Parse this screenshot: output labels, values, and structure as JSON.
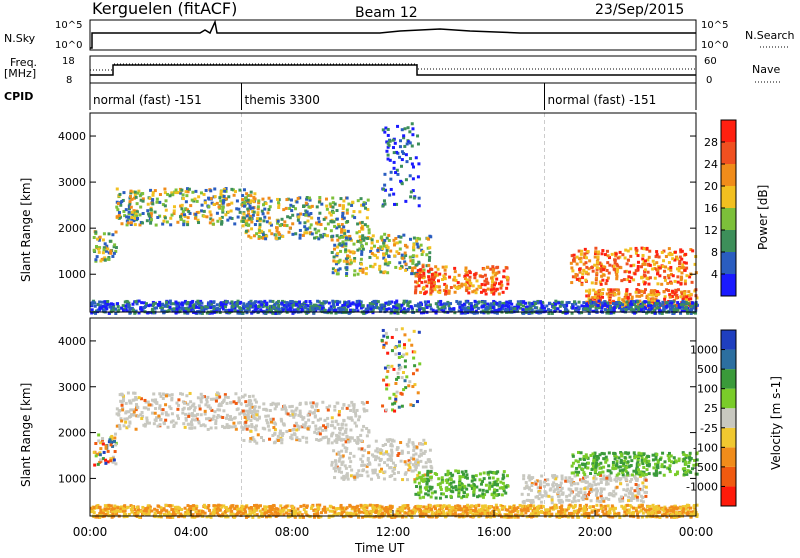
{
  "header": {
    "station": "Kerguelen (fitACF)",
    "beam": "Beam 12",
    "date": "23/Sep/2015"
  },
  "info_panels": {
    "nsky_label": "N.Sky",
    "nsky_ticks": [
      "10^5",
      "10^0"
    ],
    "nsearch_label": "N.Search",
    "freq_label_line1": "Freq.",
    "freq_label_line2": "[MHz]",
    "freq_ticks": [
      "18",
      "8"
    ],
    "nave_label": "Nave",
    "nave_ticks": [
      "60",
      "0"
    ],
    "cpid_label": "CPID",
    "cpid_segments": [
      {
        "label": "normal (fast) -151",
        "start": 0,
        "end": 6
      },
      {
        "label": "themis 3300",
        "start": 6,
        "end": 18
      },
      {
        "label": "normal (fast) -151",
        "start": 18,
        "end": 24
      }
    ]
  },
  "chart_data": [
    {
      "type": "heatmap",
      "title": "",
      "xlabel": "Time UT",
      "ylabel": "Slant Range [km]",
      "x_range_hours": [
        0,
        24
      ],
      "ylim": [
        180,
        4500
      ],
      "x_tick_labels": [
        "00:00",
        "04:00",
        "08:00",
        "12:00",
        "16:00",
        "20:00",
        "00:00"
      ],
      "y_tick_labels": [
        "1000",
        "2000",
        "3000",
        "4000"
      ],
      "y_ticks": [
        1000,
        2000,
        3000,
        4000
      ],
      "colorbar": {
        "label": "Power [dB]",
        "tick_labels": [
          "4",
          "8",
          "12",
          "16",
          "20",
          "24",
          "28"
        ],
        "colors": [
          "#1a1aff",
          "#2a5dc0",
          "#3d8f5a",
          "#7cc03a",
          "#f2c020",
          "#f08c1a",
          "#f05020",
          "#ff2010"
        ]
      },
      "regions": [
        {
          "t0": 0.1,
          "t1": 1.0,
          "r0": 1300,
          "r1": 2000,
          "level": "medium"
        },
        {
          "t0": 1.0,
          "t1": 6.5,
          "r0": 2100,
          "r1": 2900,
          "level": "medium"
        },
        {
          "t0": 6.0,
          "t1": 11.0,
          "r0": 1800,
          "r1": 2700,
          "level": "medium"
        },
        {
          "t0": 9.5,
          "t1": 13.5,
          "r0": 1000,
          "r1": 1900,
          "level": "medium"
        },
        {
          "t0": 11.5,
          "t1": 13.0,
          "r0": 2500,
          "r1": 4300,
          "level": "weak"
        },
        {
          "t0": 12.8,
          "t1": 16.5,
          "r0": 600,
          "r1": 1200,
          "level": "strong"
        },
        {
          "t0": 19.0,
          "t1": 24.0,
          "r0": 800,
          "r1": 1600,
          "level": "strong"
        },
        {
          "t0": 19.5,
          "t1": 24.0,
          "r0": 300,
          "r1": 700,
          "level": "strong"
        },
        {
          "t0": 0.0,
          "t1": 24.0,
          "r0": 180,
          "r1": 450,
          "level": "weak"
        }
      ]
    },
    {
      "type": "heatmap",
      "title": "",
      "xlabel": "Time UT",
      "ylabel": "Slant Range [km]",
      "x_range_hours": [
        0,
        24
      ],
      "ylim": [
        180,
        4500
      ],
      "x_tick_labels": [
        "00:00",
        "04:00",
        "08:00",
        "12:00",
        "16:00",
        "20:00",
        "00:00"
      ],
      "y_tick_labels": [
        "1000",
        "2000",
        "3000",
        "4000"
      ],
      "y_ticks": [
        1000,
        2000,
        3000,
        4000
      ],
      "colorbar": {
        "label": "Velocity [m s-1]",
        "tick_labels": [
          "1000",
          "500",
          "100",
          "25",
          "-25",
          "-100",
          "-500",
          "-1000"
        ],
        "colors": [
          "#1f3fbf",
          "#2c6fa0",
          "#3a9a3a",
          "#7acc2a",
          "#c8c8c0",
          "#f0c830",
          "#f08c1a",
          "#f05a10",
          "#ff1a0a"
        ]
      },
      "regions": [
        {
          "t0": 0.1,
          "t1": 1.0,
          "r0": 1300,
          "r1": 2000,
          "level": "mixed"
        },
        {
          "t0": 1.0,
          "t1": 6.5,
          "r0": 2100,
          "r1": 2900,
          "level": "gray"
        },
        {
          "t0": 6.0,
          "t1": 11.0,
          "r0": 1800,
          "r1": 2700,
          "level": "gray"
        },
        {
          "t0": 9.5,
          "t1": 13.5,
          "r0": 1000,
          "r1": 1900,
          "level": "gray"
        },
        {
          "t0": 11.5,
          "t1": 13.0,
          "r0": 2500,
          "r1": 4300,
          "level": "mixed"
        },
        {
          "t0": 12.8,
          "t1": 16.5,
          "r0": 600,
          "r1": 1200,
          "level": "green"
        },
        {
          "t0": 17.0,
          "t1": 22.0,
          "r0": 500,
          "r1": 1100,
          "level": "gray"
        },
        {
          "t0": 19.0,
          "t1": 24.0,
          "r0": 1100,
          "r1": 1600,
          "level": "green"
        },
        {
          "t0": 0.0,
          "t1": 24.0,
          "r0": 180,
          "r1": 450,
          "level": "orange"
        }
      ]
    }
  ]
}
